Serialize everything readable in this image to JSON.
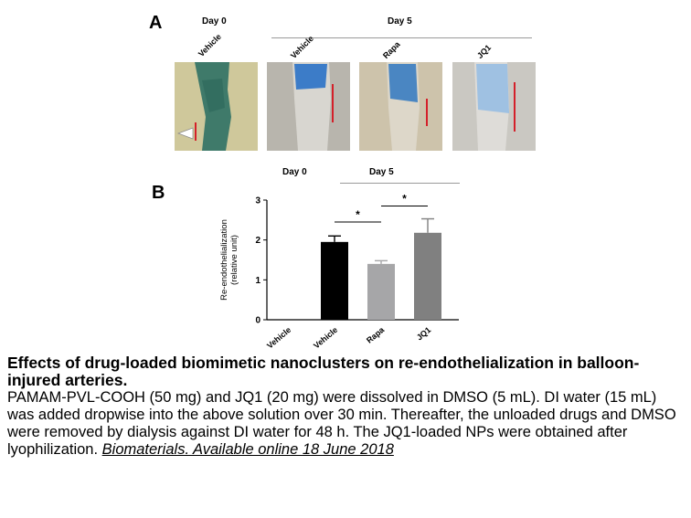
{
  "panel_a": {
    "letter": "A",
    "day0_label": "Day 0",
    "day5_label": "Day 5",
    "images": [
      {
        "label": "Vehicle",
        "bg": "#cdc79a",
        "stain": "#3f7f6e"
      },
      {
        "label": "Vehicle",
        "bg": "#b9b6ae",
        "stain": "#3e7cc4"
      },
      {
        "label": "Rapa",
        "bg": "#cdc3ac",
        "stain": "#4a86c0"
      },
      {
        "label": "JQ1",
        "bg": "#c9c7c0",
        "stain": "#8fb6dc"
      }
    ]
  },
  "panel_b": {
    "letter": "B",
    "day0_label": "Day 0",
    "day5_label": "Day 5",
    "significance": [
      "*",
      "*"
    ]
  },
  "chart_data": {
    "type": "bar",
    "categories": [
      "Vehicle",
      "Vehicle",
      "Rapa",
      "JQ1"
    ],
    "values": [
      0,
      1.95,
      1.4,
      2.18
    ],
    "errors": [
      0,
      0.15,
      0.08,
      0.35
    ],
    "bar_colors": [
      "#000000",
      "#000000",
      "#a6a6a8",
      "#808080"
    ],
    "ylabel": "Re-endothelialization\n(relative unit)",
    "ylim": [
      0,
      3
    ],
    "yticks": [
      0,
      1,
      2,
      3
    ]
  },
  "caption": {
    "title": "Effects of drug-loaded biomimetic nanoclusters on re-endothelialization in balloon-injured arteries.",
    "body": "PAMAM-PVL-COOH (50 mg) and JQ1 (20 mg) were dissolved in DMSO (5 mL). DI water (15 mL) was added dropwise into the above solution over 30 min. Thereafter, the unloaded drugs and DMSO were removed by dialysis against DI water for 48 h. The JQ1-loaded NPs were obtained after lyophilization.",
    "source": "Biomaterials. Available online 18 June 2018"
  }
}
